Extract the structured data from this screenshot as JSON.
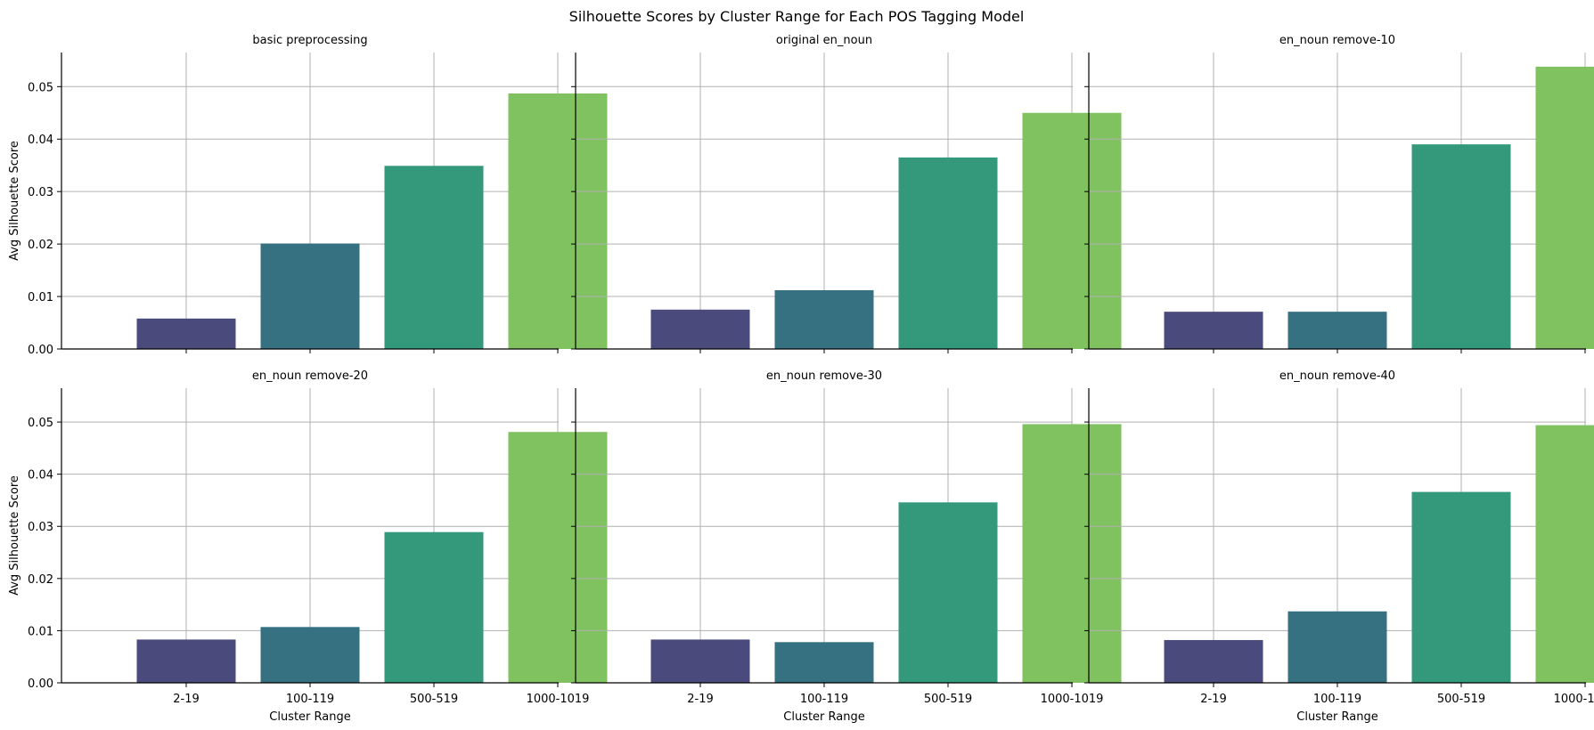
{
  "chart_data": {
    "type": "bar",
    "title": "Silhouette Scores by Cluster Range for Each POS Tagging Model",
    "xlabel": "Cluster Range",
    "ylabel": "Avg Silhouette Score",
    "categories": [
      "2-19",
      "100-119",
      "500-519",
      "1000-1019"
    ],
    "yticks": [
      "0.00",
      "0.01",
      "0.02",
      "0.03",
      "0.04",
      "0.05"
    ],
    "ylim": [
      0,
      0.0565
    ],
    "grid": true,
    "colors": [
      "#4a4a7c",
      "#357180",
      "#33997a",
      "#80c260"
    ],
    "panels": [
      {
        "title": "basic preprocessing",
        "values": [
          0.0058,
          0.0201,
          0.0349,
          0.0487
        ]
      },
      {
        "title": "original en_noun",
        "values": [
          0.0075,
          0.0112,
          0.0365,
          0.045
        ]
      },
      {
        "title": "en_noun remove-10",
        "values": [
          0.0071,
          0.0071,
          0.039,
          0.0538
        ]
      },
      {
        "title": "en_noun remove-20",
        "values": [
          0.0083,
          0.0107,
          0.0289,
          0.0481
        ]
      },
      {
        "title": "en_noun remove-30",
        "values": [
          0.0083,
          0.0078,
          0.0346,
          0.0496
        ]
      },
      {
        "title": "en_noun remove-40",
        "values": [
          0.0082,
          0.0137,
          0.0366,
          0.0494
        ]
      }
    ]
  }
}
